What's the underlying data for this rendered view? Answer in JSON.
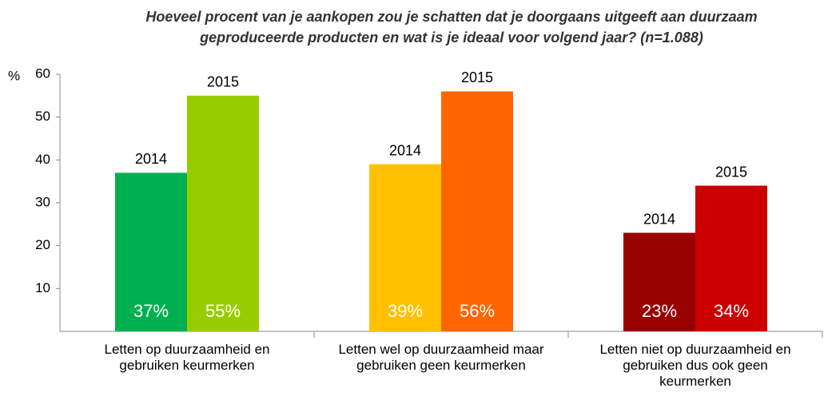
{
  "chart_data": {
    "type": "bar",
    "title": "Hoeveel procent van je aankopen zou je schatten dat je doorgaans uitgeeft aan duurzaam\ngeproduceerde producten en wat is je ideaal voor volgend jaar? (n=1.088)",
    "y_label": "%",
    "categories": [
      "Letten op duurzaamheid en\ngebruiken keurmerken",
      "Letten wel op duurzaamheid maar\ngebruiken geen keurmerken",
      "Letten niet op duurzaamheid en\ngebruiken dus ook geen\nkeurmerken"
    ],
    "series": [
      {
        "name": "2014",
        "colors": [
          "#00b050",
          "#ffc000",
          "#990000"
        ],
        "values": [
          37,
          39,
          23
        ],
        "value_labels": [
          "37%",
          "39%",
          "23%"
        ]
      },
      {
        "name": "2015",
        "colors": [
          "#99cc00",
          "#ff6600",
          "#cc0000"
        ],
        "values": [
          55,
          56,
          34
        ],
        "value_labels": [
          "55%",
          "56%",
          "34%"
        ]
      }
    ],
    "ylim": [
      0,
      60
    ],
    "yticks": [
      10,
      20,
      30,
      40,
      50,
      60
    ]
  }
}
